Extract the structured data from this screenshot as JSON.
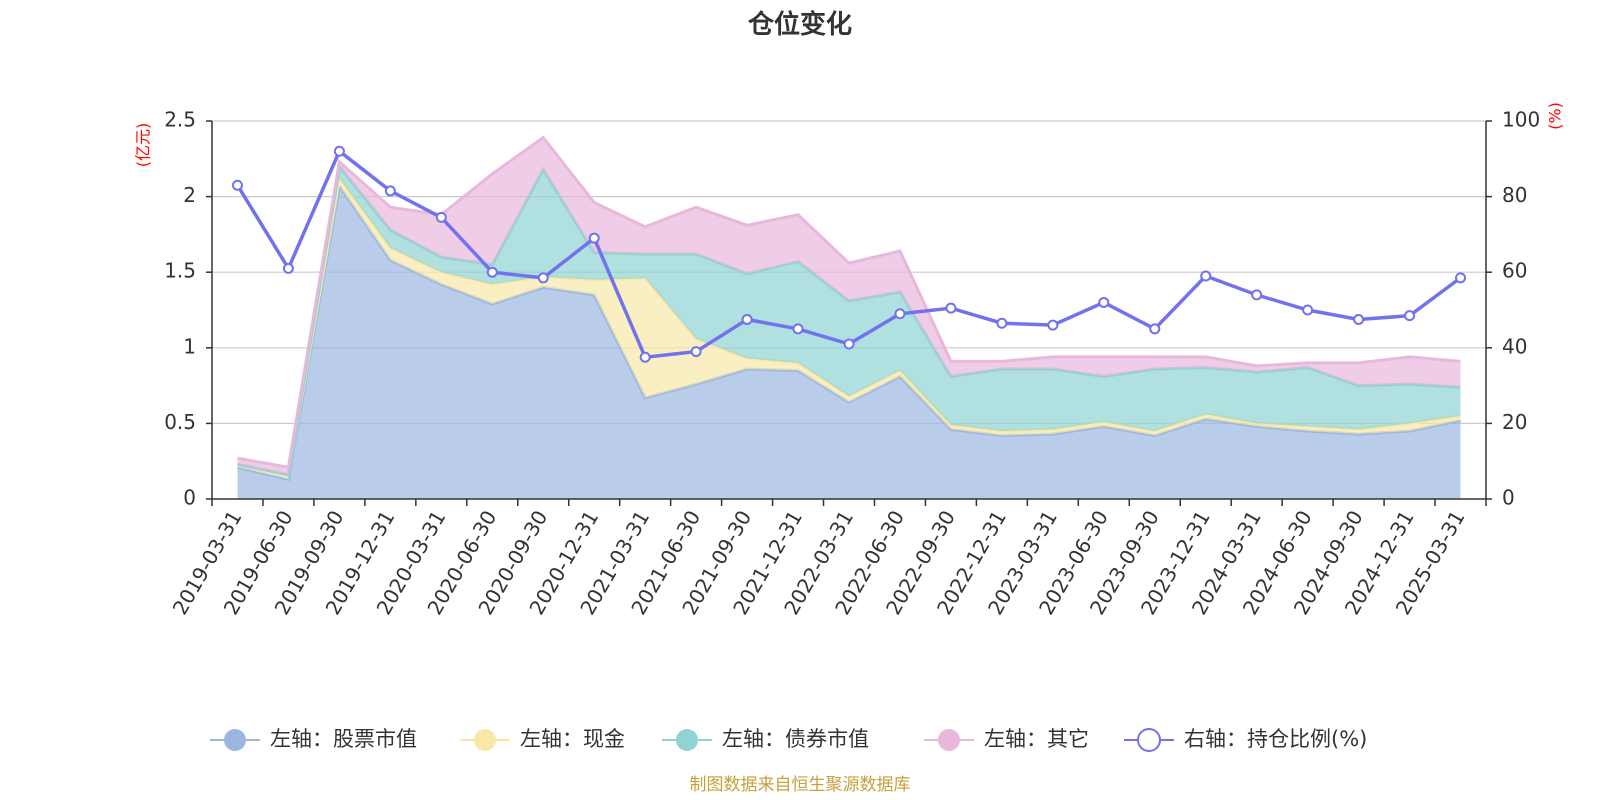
{
  "chart_data": {
    "type": "area",
    "title": "仓位变化",
    "left_unit": "(亿元)",
    "right_unit": "(%)",
    "source": "制图数据来自恒生聚源数据库",
    "categories": [
      "2019-03-31",
      "2019-06-30",
      "2019-09-30",
      "2019-12-31",
      "2020-03-31",
      "2020-06-30",
      "2020-09-30",
      "2020-12-31",
      "2021-03-31",
      "2021-06-30",
      "2021-09-30",
      "2021-12-31",
      "2022-03-31",
      "2022-06-30",
      "2022-09-30",
      "2022-12-31",
      "2023-03-31",
      "2023-06-30",
      "2023-09-30",
      "2023-12-31",
      "2024-03-31",
      "2024-06-30",
      "2024-09-30",
      "2024-12-31",
      "2025-03-31"
    ],
    "left_axis": {
      "min": 0,
      "max": 2.5,
      "ticks": [
        "0",
        "0.5",
        "1",
        "1.5",
        "2",
        "2.5"
      ]
    },
    "right_axis": {
      "min": 0,
      "max": 100,
      "ticks": [
        "0",
        "20",
        "40",
        "60",
        "80",
        "100"
      ]
    },
    "grid": true,
    "legend_position": "bottom",
    "series": [
      {
        "name": "左轴：股票市值",
        "axis": "left",
        "stacked": true,
        "color": "#9bb7e0",
        "values": [
          0.21,
          0.13,
          2.07,
          1.58,
          1.42,
          1.29,
          1.4,
          1.35,
          0.67,
          0.76,
          0.86,
          0.85,
          0.64,
          0.81,
          0.46,
          0.42,
          0.43,
          0.48,
          0.42,
          0.53,
          0.48,
          0.45,
          0.43,
          0.45,
          0.52
        ]
      },
      {
        "name": "左轴：现金",
        "axis": "left",
        "stacked": true,
        "color": "#f8e8a8",
        "values": [
          0.02,
          0.03,
          0.05,
          0.08,
          0.08,
          0.13,
          0.07,
          0.1,
          0.79,
          0.3,
          0.07,
          0.05,
          0.04,
          0.04,
          0.03,
          0.03,
          0.03,
          0.03,
          0.03,
          0.03,
          0.02,
          0.03,
          0.03,
          0.05,
          0.03
        ]
      },
      {
        "name": "左轴：债券市值",
        "axis": "left",
        "stacked": true,
        "color": "#8fd3d3",
        "values": [
          0.0,
          0.0,
          0.08,
          0.12,
          0.1,
          0.13,
          0.71,
          0.18,
          0.16,
          0.56,
          0.56,
          0.67,
          0.63,
          0.52,
          0.32,
          0.41,
          0.4,
          0.3,
          0.41,
          0.31,
          0.34,
          0.39,
          0.29,
          0.26,
          0.19
        ]
      },
      {
        "name": "左轴：其它",
        "axis": "left",
        "stacked": true,
        "color": "#e8b8dc",
        "values": [
          0.04,
          0.05,
          0.03,
          0.15,
          0.28,
          0.6,
          0.21,
          0.33,
          0.18,
          0.31,
          0.32,
          0.31,
          0.25,
          0.27,
          0.1,
          0.05,
          0.08,
          0.13,
          0.08,
          0.07,
          0.04,
          0.03,
          0.15,
          0.18,
          0.17
        ]
      },
      {
        "name": "右轴：持仓比例(%)",
        "axis": "right",
        "type": "line",
        "color": "#7272ee",
        "values": [
          83,
          61,
          92,
          81.5,
          74.5,
          60,
          58.5,
          69,
          37.5,
          39,
          47.5,
          45,
          41,
          49,
          50.5,
          46.5,
          46,
          52,
          45,
          59,
          54,
          50,
          47.5,
          48.5,
          58.5
        ]
      }
    ]
  }
}
